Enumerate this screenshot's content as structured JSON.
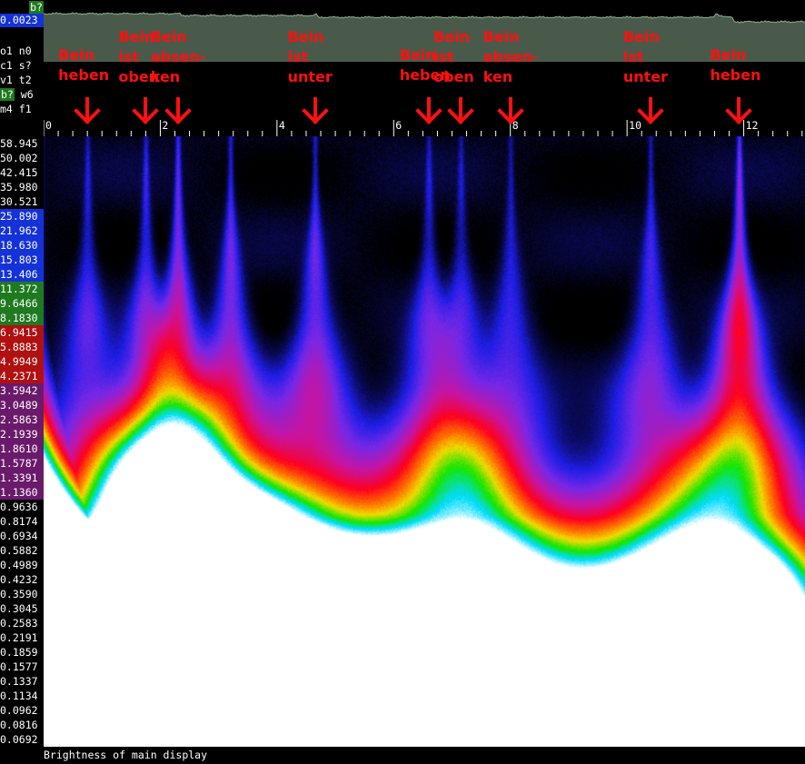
{
  "top_corner_badge": "b?",
  "envelope_value": "0.0023",
  "flags": [
    {
      "text": "o1 n0",
      "badge": false
    },
    {
      "text": "c1 s?",
      "badge": false
    },
    {
      "text": "v1 t2",
      "badge": false
    },
    {
      "badge_text": "b?",
      "rest": " w6",
      "badge": true
    },
    {
      "text": "m4 f1",
      "badge": false
    }
  ],
  "status_text": "Brightness of main display",
  "colors": {
    "red": "#ff1010",
    "envelope_fill": "#4a5a4a",
    "envelope_line": "#8fae8f",
    "blue_label": "#1432d8",
    "green_badge": "#1f7a1f"
  },
  "annotations": [
    {
      "text": "Bein\nheben",
      "time": 0.75
    },
    {
      "text": "Bein\nist\noben",
      "time": 1.75
    },
    {
      "text": "Bein\nabsen-\nken",
      "time": 2.3
    },
    {
      "text": "Bein\nist\nunter",
      "time": 4.65
    },
    {
      "text": "Bein\nheben",
      "time": 6.6
    },
    {
      "text": "Bein\nist\noben",
      "time": 7.15
    },
    {
      "text": "Bein\nabsen-\nken",
      "time": 8.0
    },
    {
      "text": "Bein\nist\nunter",
      "time": 10.4
    },
    {
      "text": "Bein\nheben",
      "time": 11.92
    }
  ],
  "chart_data": {
    "type": "heatmap",
    "title": "",
    "xlabel": "",
    "ylabel": "",
    "x_ticks": [
      0,
      2,
      4,
      6,
      8,
      10,
      12
    ],
    "x_range": [
      0,
      13.05
    ],
    "y_scale": "log",
    "y_range": [
      0.0692,
      58.945
    ],
    "y_ticks": [
      "58.945",
      "50.002",
      "42.415",
      "35.980",
      "30.521",
      "25.890",
      "21.962",
      "18.630",
      "15.803",
      "13.406",
      "11.372",
      "9.6466",
      "8.1830",
      "6.9415",
      "5.8883",
      "4.9949",
      "4.2371",
      "3.5942",
      "3.0489",
      "2.5863",
      "2.1939",
      "1.8610",
      "1.5787",
      "1.3391",
      "1.1360",
      "0.9636",
      "0.8174",
      "0.6934",
      "0.5882",
      "0.4989",
      "0.4232",
      "0.3590",
      "0.3045",
      "0.2583",
      "0.2191",
      "0.1859",
      "0.1577",
      "0.1337",
      "0.1134",
      "0.0962",
      "0.0816",
      "0.0692"
    ],
    "y_tick_colors": [
      "white",
      "white",
      "white",
      "white",
      "white",
      "blue",
      "blue",
      "blue",
      "blue",
      "blue",
      "green",
      "green",
      "green",
      "red",
      "red",
      "red",
      "red",
      "purple",
      "purple",
      "purple",
      "purple",
      "purple",
      "purple",
      "purple",
      "purple",
      "white",
      "white",
      "white",
      "white",
      "white",
      "white",
      "white",
      "white",
      "white",
      "white",
      "white",
      "white",
      "white",
      "white",
      "white",
      "white",
      "white"
    ],
    "events": [
      {
        "time": 0.75,
        "strength": 0.5
      },
      {
        "time": 1.75,
        "strength": 0.6
      },
      {
        "time": 2.3,
        "strength": 0.85
      },
      {
        "time": 3.2,
        "strength": 0.7
      },
      {
        "time": 4.65,
        "strength": 0.65
      },
      {
        "time": 6.6,
        "strength": 0.5
      },
      {
        "time": 7.15,
        "strength": 0.45
      },
      {
        "time": 8.0,
        "strength": 0.45
      },
      {
        "time": 10.4,
        "strength": 0.55
      },
      {
        "time": 11.92,
        "strength": 1.0
      }
    ]
  }
}
